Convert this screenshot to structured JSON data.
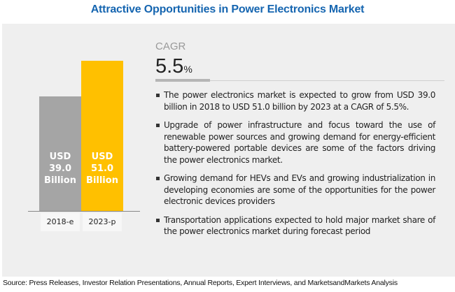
{
  "title": "Attractive Opportunities in Power Electronics Market",
  "cagr": {
    "label": "CAGR",
    "value": "5.5",
    "unit": "%"
  },
  "chart_data": {
    "type": "bar",
    "categories": [
      "2018-e",
      "2023-p"
    ],
    "values": [
      39.0,
      51.0
    ],
    "data_labels": [
      [
        "USD",
        "39.0",
        "Billion"
      ],
      [
        "USD",
        "51.0",
        "Billion"
      ]
    ],
    "colors": [
      "#a5a5a5",
      "#ffc000"
    ],
    "ylabel": "",
    "xlabel": "",
    "grid": false
  },
  "bullets": [
    "The power electronics market is expected to grow from USD 39.0 billion in 2018 to USD 51.0 billion by 2023 at a CAGR of 5.5%.",
    "Upgrade of power infrastructure and focus toward the use of renewable power sources and growing demand for energy-efficient battery-powered portable devices are some of the factors driving the power electronics market.",
    "Growing demand for HEVs and EVs and growing industrialization in developing economies are some of the opportunities for the power electronic devices providers",
    "Transportation applications expected to hold major market share of the power electronics market during forecast period"
  ],
  "source": "Source: Press Releases, Investor Relation Presentations, Annual Reports, Expert Interviews, and MarketsandMarkets Analysis"
}
